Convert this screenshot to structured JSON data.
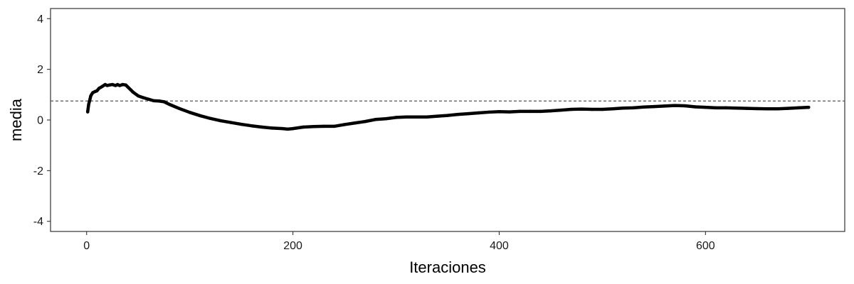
{
  "chart_data": {
    "type": "scatter",
    "title": "",
    "xlabel": "Iteraciones",
    "ylabel": "media",
    "xlim": [
      -35,
      735
    ],
    "ylim": [
      -4.4,
      4.4
    ],
    "x_ticks": [
      0,
      200,
      400,
      600
    ],
    "x_tick_labels": [
      "0",
      "200",
      "400",
      "600"
    ],
    "y_ticks": [
      -4,
      -2,
      0,
      2,
      4
    ],
    "y_tick_labels": [
      "-4",
      "-2",
      "0",
      "2",
      "4"
    ],
    "grid": false,
    "legend": "none",
    "point_color": "#000000",
    "reference_line": {
      "y": 0.75,
      "style": "dashed",
      "color": "#555555"
    },
    "series": [
      {
        "x": [
          1,
          2,
          3,
          4,
          5,
          6,
          8,
          10,
          12,
          15,
          18,
          20,
          22,
          25,
          28,
          30,
          32,
          35,
          38,
          40,
          45,
          50,
          55,
          60,
          65,
          70,
          75,
          80,
          90,
          100,
          110,
          120,
          130,
          140,
          150,
          160,
          170,
          180,
          190,
          195,
          200,
          210,
          220,
          230,
          240,
          250,
          260,
          270,
          280,
          290,
          300,
          310,
          320,
          330,
          340,
          350,
          360,
          370,
          380,
          390,
          400,
          410,
          420,
          430,
          440,
          450,
          460,
          470,
          480,
          490,
          500,
          510,
          520,
          530,
          540,
          550,
          560,
          570,
          580,
          590,
          600,
          610,
          620,
          630,
          640,
          650,
          660,
          670,
          680,
          690,
          700
        ],
        "y": [
          0.32,
          0.62,
          0.78,
          0.95,
          1.02,
          1.08,
          1.12,
          1.15,
          1.25,
          1.32,
          1.4,
          1.36,
          1.38,
          1.4,
          1.36,
          1.4,
          1.36,
          1.4,
          1.38,
          1.3,
          1.1,
          0.95,
          0.88,
          0.82,
          0.76,
          0.75,
          0.72,
          0.62,
          0.45,
          0.3,
          0.17,
          0.06,
          -0.03,
          -0.1,
          -0.17,
          -0.23,
          -0.28,
          -0.32,
          -0.34,
          -0.36,
          -0.34,
          -0.28,
          -0.26,
          -0.25,
          -0.25,
          -0.18,
          -0.12,
          -0.06,
          0.02,
          0.05,
          0.1,
          0.12,
          0.12,
          0.12,
          0.15,
          0.18,
          0.22,
          0.25,
          0.28,
          0.31,
          0.33,
          0.32,
          0.34,
          0.34,
          0.34,
          0.36,
          0.39,
          0.42,
          0.43,
          0.42,
          0.42,
          0.44,
          0.47,
          0.48,
          0.51,
          0.53,
          0.55,
          0.57,
          0.56,
          0.52,
          0.5,
          0.48,
          0.48,
          0.47,
          0.46,
          0.45,
          0.44,
          0.44,
          0.46,
          0.48,
          0.5
        ]
      }
    ]
  }
}
